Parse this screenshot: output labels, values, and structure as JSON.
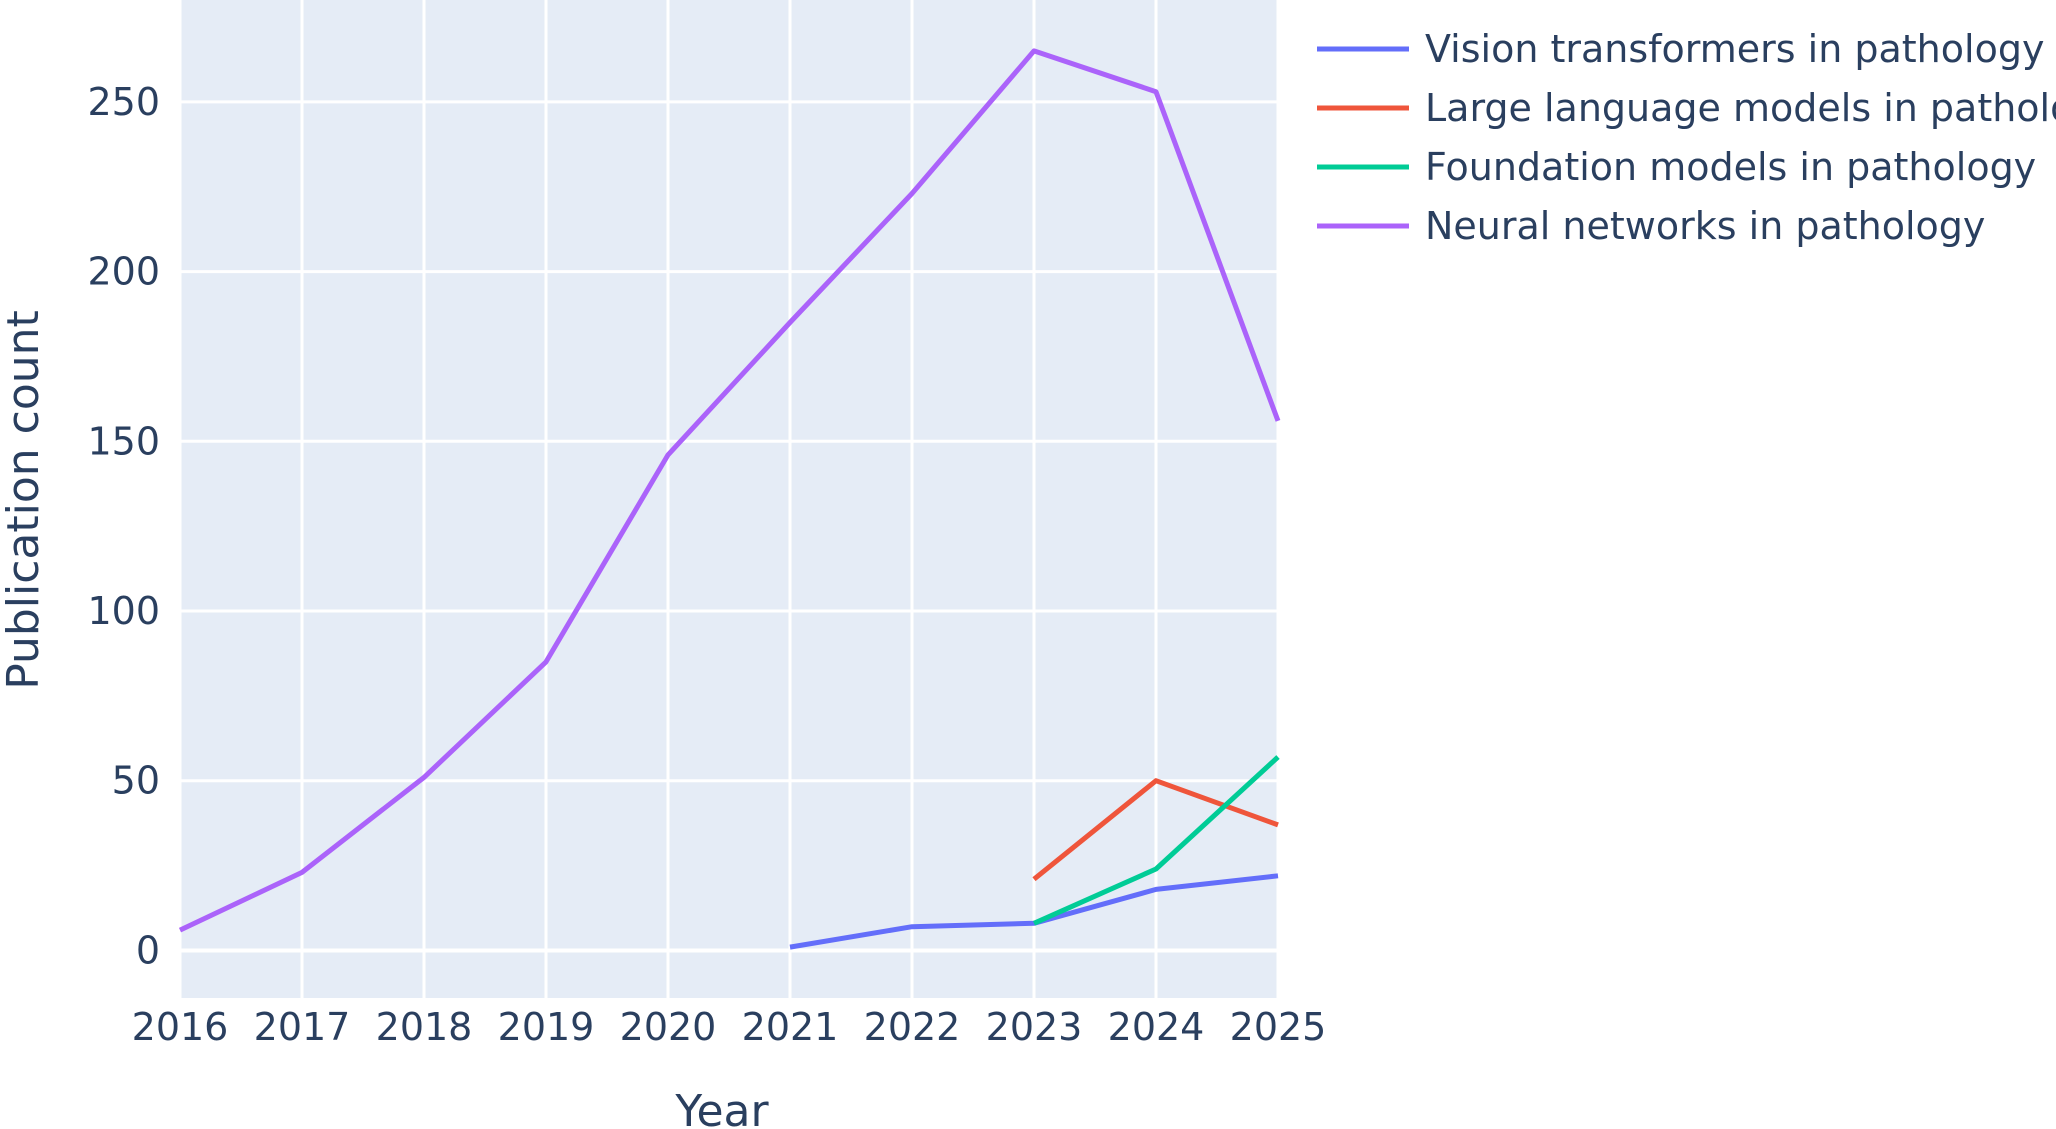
{
  "chart_data": {
    "type": "line",
    "title": "",
    "xlabel": "Year",
    "ylabel": "Publication count",
    "x": [
      2016,
      2017,
      2018,
      2019,
      2020,
      2021,
      2022,
      2023,
      2024,
      2025
    ],
    "xlim": [
      2016,
      2025
    ],
    "ylim": [
      -14,
      280
    ],
    "x_ticks": [
      "2016",
      "2017",
      "2018",
      "2019",
      "2020",
      "2021",
      "2022",
      "2023",
      "2024",
      "2025"
    ],
    "y_ticks": [
      "0",
      "50",
      "100",
      "150",
      "200",
      "250"
    ],
    "grid": true,
    "legend_position": "top-right outside plot",
    "plot_background": "#e5ecf6",
    "series": [
      {
        "name": "Vision transformers in pathology",
        "color": "#636efa",
        "values": [
          null,
          null,
          null,
          null,
          null,
          1,
          7,
          8,
          18,
          22
        ]
      },
      {
        "name": "Large language models in pathology",
        "color": "#ef553b",
        "values": [
          null,
          null,
          null,
          null,
          null,
          null,
          null,
          21,
          50,
          37
        ]
      },
      {
        "name": "Foundation models in pathology",
        "color": "#00cc96",
        "values": [
          null,
          null,
          null,
          null,
          null,
          null,
          null,
          8,
          24,
          57
        ]
      },
      {
        "name": "Neural networks in pathology",
        "color": "#ab63fa",
        "values": [
          6,
          23,
          51,
          85,
          146,
          185,
          223,
          265,
          253,
          156
        ]
      }
    ]
  }
}
